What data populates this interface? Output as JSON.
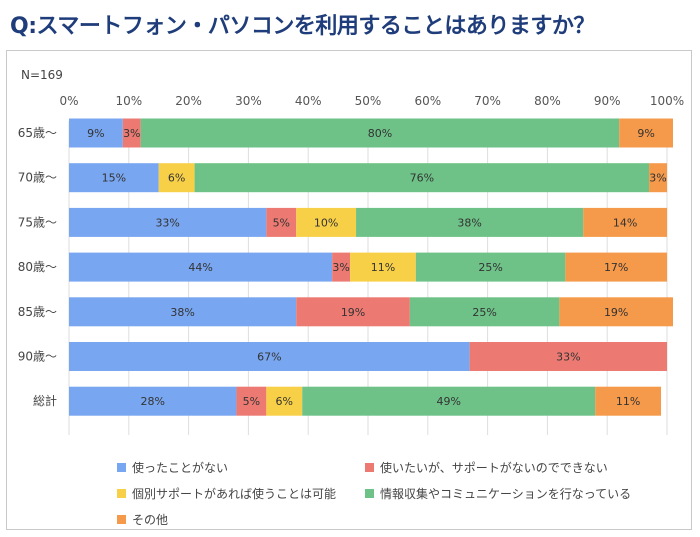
{
  "title": "Q:スマートフォン・パソコンを利用することはありますか？",
  "n_label": "N=169",
  "chart_data": {
    "type": "bar",
    "orientation": "horizontal",
    "stacked": true,
    "percent": true,
    "xlim": [
      0,
      100
    ],
    "xticks": [
      "0%",
      "10%",
      "20%",
      "30%",
      "40%",
      "50%",
      "60%",
      "70%",
      "80%",
      "90%",
      "100%"
    ],
    "grid": true,
    "legend_position": "bottom",
    "categories": [
      "65歳〜",
      "70歳〜",
      "75歳〜",
      "80歳〜",
      "85歳〜",
      "90歳〜",
      "総計"
    ],
    "series": [
      {
        "name": "使ったことがない",
        "color": "#79a6f0",
        "values": [
          9,
          15,
          33,
          44,
          38,
          67,
          28
        ],
        "labels": [
          "9%",
          "15%",
          "33%",
          "44%",
          "38%",
          "67%",
          "28%"
        ]
      },
      {
        "name": "使いたいが、サポートがないのでできない",
        "color": "#ec7a72",
        "values": [
          3,
          0,
          5,
          3,
          19,
          33,
          5
        ],
        "labels": [
          "3%",
          "",
          "5%",
          "3%",
          "19%",
          "33%",
          "5%"
        ]
      },
      {
        "name": "個別サポートがあれば使うことは可能",
        "color": "#f8d048",
        "values": [
          0,
          6,
          10,
          11,
          0,
          0,
          6
        ],
        "labels": [
          "",
          "6%",
          "10%",
          "11%",
          "",
          "",
          "6%"
        ]
      },
      {
        "name": "情報収集やコミュニケーションを行なっている",
        "color": "#6ec287",
        "values": [
          80,
          76,
          38,
          25,
          25,
          0,
          49
        ],
        "labels": [
          "80%",
          "76%",
          "38%",
          "25%",
          "25%",
          "",
          "49%"
        ]
      },
      {
        "name": "その他",
        "color": "#f5994a",
        "values": [
          9,
          3,
          14,
          17,
          19,
          0,
          11
        ],
        "labels": [
          "9%",
          "3%",
          "14%",
          "17%",
          "19%",
          "",
          "11%"
        ]
      }
    ]
  }
}
